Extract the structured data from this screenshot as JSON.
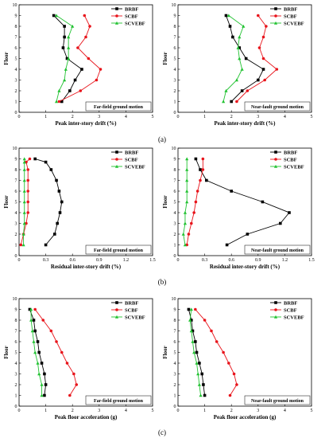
{
  "chart_data": [
    {
      "type": "line",
      "xlabel": "Peak inter-story drift (%)",
      "ylabel": "Floor",
      "xlim": [
        0,
        5
      ],
      "ylim": [
        0,
        10
      ],
      "xticks": [
        "0",
        "1",
        "2",
        "3",
        "4",
        "5"
      ],
      "yticks": [
        "0",
        "1",
        "2",
        "3",
        "4",
        "5",
        "6",
        "7",
        "8",
        "9",
        "10"
      ],
      "annotation": "Far-field ground motion",
      "legend_position": "top-right",
      "series": [
        {
          "name": "BRBF",
          "color": "#000000",
          "marker": "square",
          "x": [
            1.6,
            1.9,
            2.1,
            2.35,
            1.8,
            1.65,
            1.7,
            1.7,
            1.3
          ],
          "y": [
            1,
            2,
            3,
            4,
            5,
            6,
            7,
            8,
            9
          ]
        },
        {
          "name": "SCBF",
          "color": "#e8141b",
          "marker": "circle",
          "x": [
            1.5,
            2.3,
            2.9,
            3.05,
            2.6,
            2.2,
            2.5,
            2.65,
            2.45
          ],
          "y": [
            1,
            2,
            3,
            4,
            5,
            6,
            7,
            8,
            9
          ]
        },
        {
          "name": "SCVEBF",
          "color": "#22c232",
          "marker": "triangle",
          "x": [
            1.4,
            1.5,
            1.7,
            1.75,
            1.85,
            1.85,
            1.85,
            2.0,
            1.4
          ],
          "y": [
            1,
            2,
            3,
            4,
            5,
            6,
            7,
            8,
            9
          ]
        }
      ]
    },
    {
      "type": "line",
      "xlabel": "Peak inter-story drift (%)",
      "ylabel": "Floor",
      "xlim": [
        0,
        5
      ],
      "ylim": [
        0,
        10
      ],
      "xticks": [
        "0",
        "1",
        "2",
        "3",
        "4",
        "5"
      ],
      "yticks": [
        "0",
        "1",
        "2",
        "3",
        "4",
        "5",
        "6",
        "7",
        "8",
        "9",
        "10"
      ],
      "annotation": "Near-fault ground motion",
      "legend_position": "top-right",
      "series": [
        {
          "name": "BRBF",
          "color": "#000000",
          "marker": "square",
          "x": [
            2.0,
            2.4,
            3.0,
            3.2,
            2.55,
            2.3,
            2.05,
            1.95,
            1.8
          ],
          "y": [
            1,
            2,
            3,
            4,
            5,
            6,
            7,
            8,
            9
          ]
        },
        {
          "name": "SCBF",
          "color": "#e8141b",
          "marker": "circle",
          "x": [
            2.2,
            2.6,
            3.25,
            3.7,
            3.2,
            3.05,
            3.2,
            3.3,
            3.0
          ],
          "y": [
            1,
            2,
            3,
            4,
            5,
            6,
            7,
            8,
            9
          ]
        },
        {
          "name": "SCVEBF",
          "color": "#22c232",
          "marker": "triangle",
          "x": [
            1.7,
            1.8,
            2.2,
            2.4,
            2.3,
            2.25,
            2.3,
            2.45,
            1.9
          ],
          "y": [
            1,
            2,
            3,
            4,
            5,
            6,
            7,
            8,
            9
          ]
        }
      ]
    },
    {
      "type": "line",
      "xlabel": "Residual inter-story drift (%)",
      "ylabel": "Floor",
      "xlim": [
        0,
        1.5
      ],
      "ylim": [
        0,
        10
      ],
      "xticks": [
        "0",
        "0.3",
        "0.6",
        "0.9",
        "1.2",
        "1.5"
      ],
      "yticks": [
        "0",
        "1",
        "2",
        "3",
        "4",
        "5",
        "6",
        "7",
        "8",
        "9",
        "10"
      ],
      "annotation": "Far-field ground motion",
      "legend_position": "top-right",
      "series": [
        {
          "name": "BRBF",
          "color": "#000000",
          "marker": "square",
          "x": [
            0.3,
            0.4,
            0.43,
            0.46,
            0.48,
            0.45,
            0.42,
            0.36,
            0.3,
            0.18
          ],
          "y": [
            1,
            2,
            3,
            4,
            5,
            6,
            7,
            8,
            8.7,
            9
          ]
        },
        {
          "name": "SCBF",
          "color": "#e8141b",
          "marker": "circle",
          "x": [
            0.02,
            0.05,
            0.08,
            0.1,
            0.1,
            0.1,
            0.1,
            0.1,
            0.08,
            0.12
          ],
          "y": [
            1,
            2,
            3,
            4,
            5,
            6,
            7,
            8,
            8.7,
            9
          ]
        },
        {
          "name": "SCVEBF",
          "color": "#22c232",
          "marker": "triangle",
          "x": [
            0.05,
            0.05,
            0.06,
            0.06,
            0.06,
            0.06,
            0.06,
            0.06,
            0.06,
            0.06
          ],
          "y": [
            1,
            2,
            3,
            4,
            5,
            6,
            7,
            8,
            8.7,
            9
          ]
        }
      ]
    },
    {
      "type": "line",
      "xlabel": "Residual inter-story drift (%)",
      "ylabel": "Floor",
      "xlim": [
        0,
        1.5
      ],
      "ylim": [
        0,
        10
      ],
      "xticks": [
        "0",
        "0.3",
        "0.6",
        "0.9",
        "1.2",
        "1.5"
      ],
      "yticks": [
        "0",
        "1",
        "2",
        "3",
        "4",
        "5",
        "6",
        "7",
        "8",
        "9",
        "10"
      ],
      "annotation": "Near-fault ground motion",
      "legend_position": "top-right",
      "series": [
        {
          "name": "BRBF",
          "color": "#000000",
          "marker": "square",
          "x": [
            0.55,
            0.78,
            1.15,
            1.25,
            0.95,
            0.6,
            0.32,
            0.25,
            0.2
          ],
          "y": [
            1,
            2,
            3,
            4,
            5,
            6,
            7,
            8,
            9
          ]
        },
        {
          "name": "SCBF",
          "color": "#e8141b",
          "marker": "circle",
          "x": [
            0.1,
            0.12,
            0.15,
            0.18,
            0.2,
            0.22,
            0.25,
            0.28,
            0.28
          ],
          "y": [
            1,
            2,
            3,
            4,
            5,
            6,
            7,
            8,
            9
          ]
        },
        {
          "name": "SCVEBF",
          "color": "#22c232",
          "marker": "triangle",
          "x": [
            0.08,
            0.06,
            0.08,
            0.08,
            0.1,
            0.1,
            0.1,
            0.1,
            0.1
          ],
          "y": [
            1,
            2,
            3,
            4,
            5,
            6,
            7,
            8,
            9
          ]
        }
      ]
    },
    {
      "type": "line",
      "xlabel": "Peak floor acceleration (g)",
      "ylabel": "Floor",
      "xlim": [
        0,
        5
      ],
      "ylim": [
        0,
        10
      ],
      "xticks": [
        "0",
        "1",
        "2",
        "3",
        "4",
        "5"
      ],
      "yticks": [
        "0",
        "1",
        "2",
        "3",
        "4",
        "5",
        "6",
        "7",
        "8",
        "9",
        "10"
      ],
      "annotation": "Far-field ground motion",
      "legend_position": "top-right",
      "series": [
        {
          "name": "BRBF",
          "color": "#000000",
          "marker": "square",
          "x": [
            0.95,
            1.0,
            0.95,
            0.85,
            0.75,
            0.7,
            0.6,
            0.55,
            0.4
          ],
          "y": [
            1,
            2,
            3,
            4,
            5,
            6,
            7,
            8,
            9
          ]
        },
        {
          "name": "SCBF",
          "color": "#e8141b",
          "marker": "circle",
          "x": [
            1.9,
            2.15,
            2.05,
            1.8,
            1.6,
            1.4,
            1.2,
            0.9,
            0.6
          ],
          "y": [
            1,
            2,
            3,
            4,
            5,
            6,
            7,
            8,
            9
          ]
        },
        {
          "name": "SCVEBF",
          "color": "#22c232",
          "marker": "triangle",
          "x": [
            0.85,
            0.85,
            0.75,
            0.7,
            0.6,
            0.55,
            0.5,
            0.45,
            0.45
          ],
          "y": [
            1,
            2,
            3,
            4,
            5,
            6,
            7,
            8,
            9
          ]
        }
      ]
    },
    {
      "type": "line",
      "xlabel": "Peak floor acceleration (g)",
      "ylabel": "Floor",
      "xlim": [
        0,
        5
      ],
      "ylim": [
        0,
        10
      ],
      "xticks": [
        "0",
        "1",
        "2",
        "3",
        "4",
        "5"
      ],
      "yticks": [
        "0",
        "1",
        "2",
        "3",
        "4",
        "5",
        "6",
        "7",
        "8",
        "9",
        "10"
      ],
      "annotation": "Near-fault ground motion",
      "legend_position": "top-right",
      "series": [
        {
          "name": "BRBF",
          "color": "#000000",
          "marker": "square",
          "x": [
            1.0,
            0.95,
            0.9,
            0.8,
            0.7,
            0.65,
            0.55,
            0.5,
            0.4
          ],
          "y": [
            1,
            2,
            3,
            4,
            5,
            6,
            7,
            8,
            9
          ]
        },
        {
          "name": "SCBF",
          "color": "#e8141b",
          "marker": "circle",
          "x": [
            1.95,
            2.2,
            2.1,
            1.9,
            1.7,
            1.45,
            1.25,
            1.0,
            0.65
          ],
          "y": [
            1,
            2,
            3,
            4,
            5,
            6,
            7,
            8,
            9
          ]
        },
        {
          "name": "SCVEBF",
          "color": "#22c232",
          "marker": "triangle",
          "x": [
            0.85,
            0.8,
            0.75,
            0.7,
            0.6,
            0.55,
            0.5,
            0.45,
            0.5
          ],
          "y": [
            1,
            2,
            3,
            4,
            5,
            6,
            7,
            8,
            9
          ]
        }
      ]
    }
  ],
  "captions": [
    "(a)",
    "(b)",
    "(c)"
  ]
}
